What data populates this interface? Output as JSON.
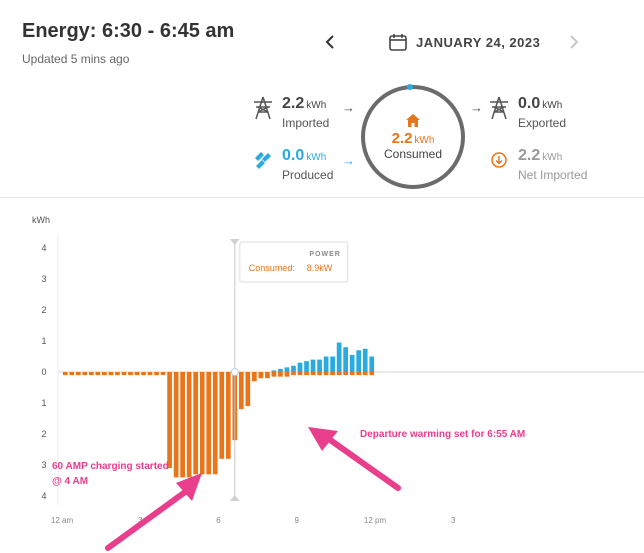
{
  "header": {
    "title": "Energy: 6:30 - 6:45 am",
    "updated": "Updated 5 mins ago",
    "date": "JANUARY 24, 2023",
    "prev_icon": "chevron-left-icon",
    "next_icon": "chevron-right-icon",
    "calendar_icon": "calendar-icon"
  },
  "flows": {
    "imported": {
      "value": "2.2",
      "unit": "kWh",
      "label": "Imported",
      "icon": "transmission-tower-icon"
    },
    "produced": {
      "value": "0.0",
      "unit": "kWh",
      "label": "Produced",
      "icon": "solar-panel-icon"
    },
    "consumed": {
      "value": "2.2",
      "unit": "kWh",
      "label": "Consumed",
      "icon": "home-icon"
    },
    "exported": {
      "value": "0.0",
      "unit": "kWh",
      "label": "Exported",
      "icon": "transmission-tower-icon"
    },
    "net_imported": {
      "value": "2.2",
      "unit": "kWh",
      "label": "Net Imported",
      "icon": "net-import-icon"
    }
  },
  "colors": {
    "consumed": "#e8751a",
    "solar": "#29abe2",
    "annotation": "#e83e8c",
    "text": "#333333"
  },
  "chart_data": {
    "type": "bar",
    "ylabel": "kWh",
    "y_ticks_above": [
      "4",
      "3",
      "2",
      "1",
      "0"
    ],
    "y_ticks_below": [
      "1",
      "2",
      "3",
      "4"
    ],
    "ylim": [
      -4,
      4
    ],
    "x_ticks": [
      "12 am",
      "3",
      "6",
      "9",
      "12 pm",
      "3"
    ],
    "x_range_hours": [
      0,
      24
    ],
    "interval_hours": 0.25,
    "consumed_kwh": [
      0.1,
      0.1,
      0.1,
      0.1,
      0.1,
      0.1,
      0.1,
      0.1,
      0.1,
      0.1,
      0.1,
      0.1,
      0.1,
      0.1,
      0.1,
      0.1,
      3.1,
      3.4,
      3.4,
      3.4,
      3.3,
      3.3,
      3.3,
      3.3,
      2.8,
      2.8,
      2.2,
      1.2,
      1.1,
      0.3,
      0.2,
      0.2,
      0.15,
      0.15,
      0.15,
      0.1,
      0.1,
      0.1,
      0.1,
      0.1,
      0.1,
      0.1,
      0.1,
      0.1,
      0.1,
      0.1,
      0.1,
      0.1
    ],
    "produced_kwh": [
      0,
      0,
      0,
      0,
      0,
      0,
      0,
      0,
      0,
      0,
      0,
      0,
      0,
      0,
      0,
      0,
      0,
      0,
      0,
      0,
      0,
      0,
      0,
      0,
      0,
      0,
      0,
      0,
      0,
      0,
      0,
      0,
      0.05,
      0.1,
      0.15,
      0.2,
      0.3,
      0.35,
      0.4,
      0.4,
      0.5,
      0.5,
      0.95,
      0.8,
      0.55,
      0.7,
      0.75,
      0.5
    ],
    "tooltip": {
      "title": "POWER",
      "label": "Consumed:",
      "value": "8.9kW"
    },
    "annotations": [
      {
        "text_lines": [
          "60 AMP charging started",
          "@ 4 AM"
        ]
      },
      {
        "text_lines": [
          "Departure warming set for 6:55 AM"
        ]
      }
    ]
  }
}
